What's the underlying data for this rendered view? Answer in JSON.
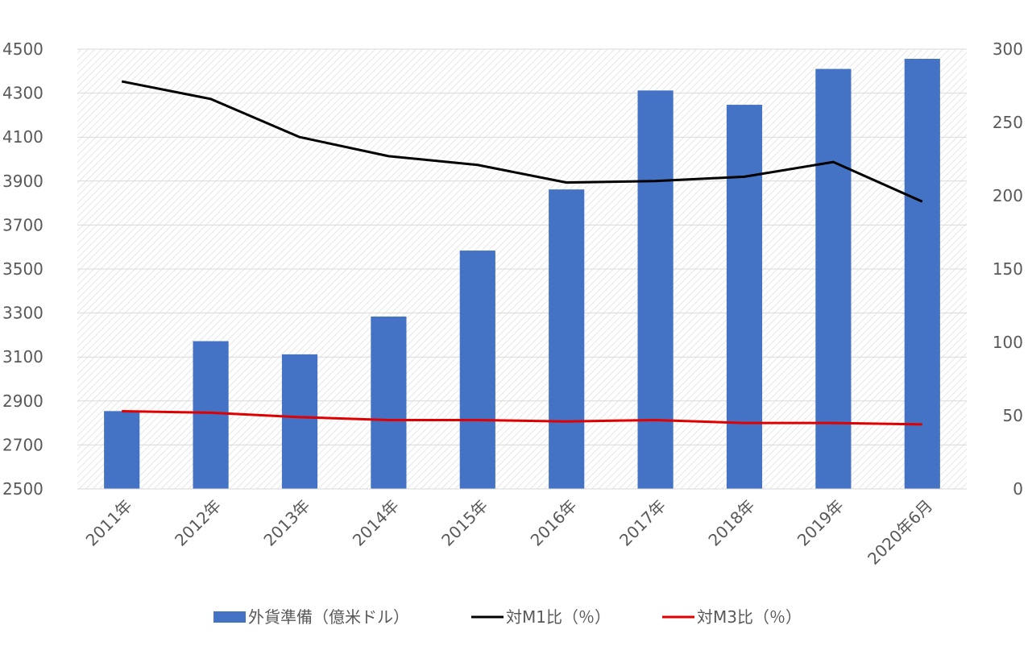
{
  "chart_data": {
    "type": "bar",
    "categories": [
      "2011年",
      "2012年",
      "2013年",
      "2014年",
      "2015年",
      "2016年",
      "2017年",
      "2018年",
      "2019年",
      "2020年6月"
    ],
    "series": [
      {
        "name": "外貨準備（億米ドル）",
        "type": "bar",
        "axis": "left",
        "color": "#4472C4",
        "values": [
          2854,
          3172,
          3112,
          3284,
          3584,
          3862,
          4312,
          4247,
          4410,
          4456
        ]
      },
      {
        "name": "対M1比（％）",
        "type": "line",
        "axis": "right",
        "color": "#000000",
        "values": [
          278,
          266,
          240,
          227,
          221,
          209,
          210,
          213,
          223,
          196
        ]
      },
      {
        "name": "対M3比（％）",
        "type": "line",
        "axis": "right",
        "color": "#E00000",
        "values": [
          53,
          52,
          49,
          47,
          47,
          46,
          47,
          45,
          45,
          44
        ]
      }
    ],
    "y_left": {
      "min": 2500,
      "max": 4500,
      "ticks": [
        2500,
        2700,
        2900,
        3100,
        3300,
        3500,
        3700,
        3900,
        4100,
        4300,
        4500
      ]
    },
    "y_right": {
      "min": 0,
      "max": 300,
      "ticks": [
        0,
        50,
        100,
        150,
        200,
        250,
        300
      ]
    },
    "grid": true,
    "legend": "bottom",
    "title": "",
    "xlabel": "",
    "ylabel": ""
  }
}
